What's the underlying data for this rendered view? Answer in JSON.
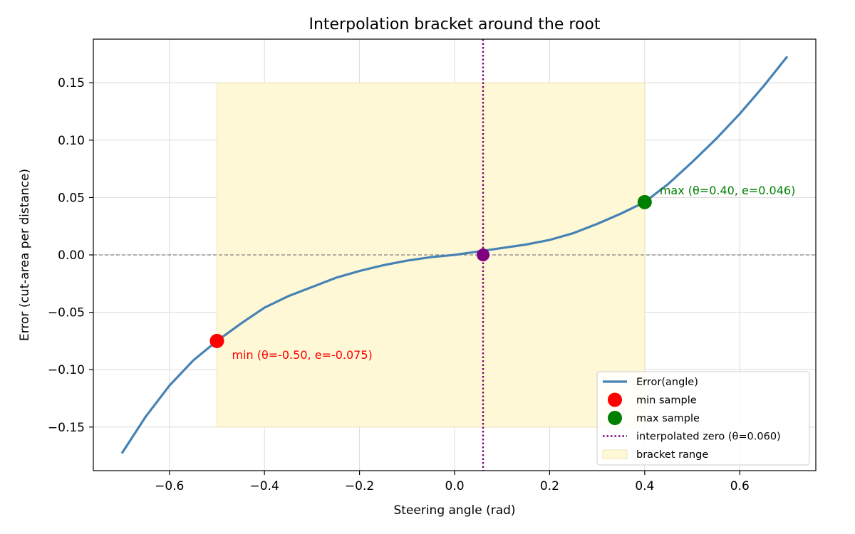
{
  "chart_data": {
    "type": "line",
    "title": "Interpolation bracket around the root",
    "xlabel": "Steering angle (rad)",
    "ylabel": "Error (cut-area per distance)",
    "xlim": [
      -0.76,
      0.76
    ],
    "ylim": [
      -0.188,
      0.188
    ],
    "xticks": [
      -0.6,
      -0.4,
      -0.2,
      0.0,
      0.2,
      0.4,
      0.6
    ],
    "yticks": [
      -0.15,
      -0.1,
      -0.05,
      0.0,
      0.05,
      0.1,
      0.15
    ],
    "xtick_labels": [
      "−0.6",
      "−0.4",
      "−0.2",
      "0.0",
      "0.2",
      "0.4",
      "0.6"
    ],
    "ytick_labels": [
      "−0.15",
      "−0.10",
      "−0.05",
      "0.00",
      "0.05",
      "0.10",
      "0.15"
    ],
    "grid": true,
    "legend_position": "lower-right",
    "series": [
      {
        "name": "Error(angle)",
        "color": "#4682b4",
        "x": [
          -0.7,
          -0.65,
          -0.6,
          -0.55,
          -0.5,
          -0.45,
          -0.4,
          -0.35,
          -0.3,
          -0.25,
          -0.2,
          -0.15,
          -0.1,
          -0.05,
          0.0,
          0.05,
          0.1,
          0.15,
          0.2,
          0.25,
          0.3,
          0.35,
          0.4,
          0.45,
          0.5,
          0.55,
          0.6,
          0.65,
          0.7
        ],
        "y": [
          -0.173,
          -0.141,
          -0.114,
          -0.092,
          -0.075,
          -0.06,
          -0.046,
          -0.036,
          -0.028,
          -0.02,
          -0.014,
          -0.009,
          -0.005,
          -0.002,
          0.0,
          0.003,
          0.006,
          0.009,
          0.013,
          0.019,
          0.027,
          0.036,
          0.046,
          0.062,
          0.081,
          0.101,
          0.123,
          0.147,
          0.173
        ]
      }
    ],
    "points": [
      {
        "name": "min sample",
        "x": -0.5,
        "y": -0.075,
        "color": "#ff0000",
        "label": "min  (θ=-0.50, e=-0.075)"
      },
      {
        "name": "max sample",
        "x": 0.4,
        "y": 0.046,
        "color": "#008000",
        "label": "max  (θ=0.40, e=0.046)"
      }
    ],
    "zero_point": {
      "x": 0.06,
      "y": 0.0,
      "color": "#800080"
    },
    "vline": {
      "name": "interpolated zero (θ=0.060)",
      "x": 0.06,
      "color": "#800080"
    },
    "hline": {
      "y": 0.0,
      "color": "#808080"
    },
    "bracket": {
      "name": "bracket range",
      "x": [
        -0.5,
        0.4
      ],
      "y": [
        -0.15,
        0.15
      ],
      "color": "#fff8d6"
    }
  }
}
